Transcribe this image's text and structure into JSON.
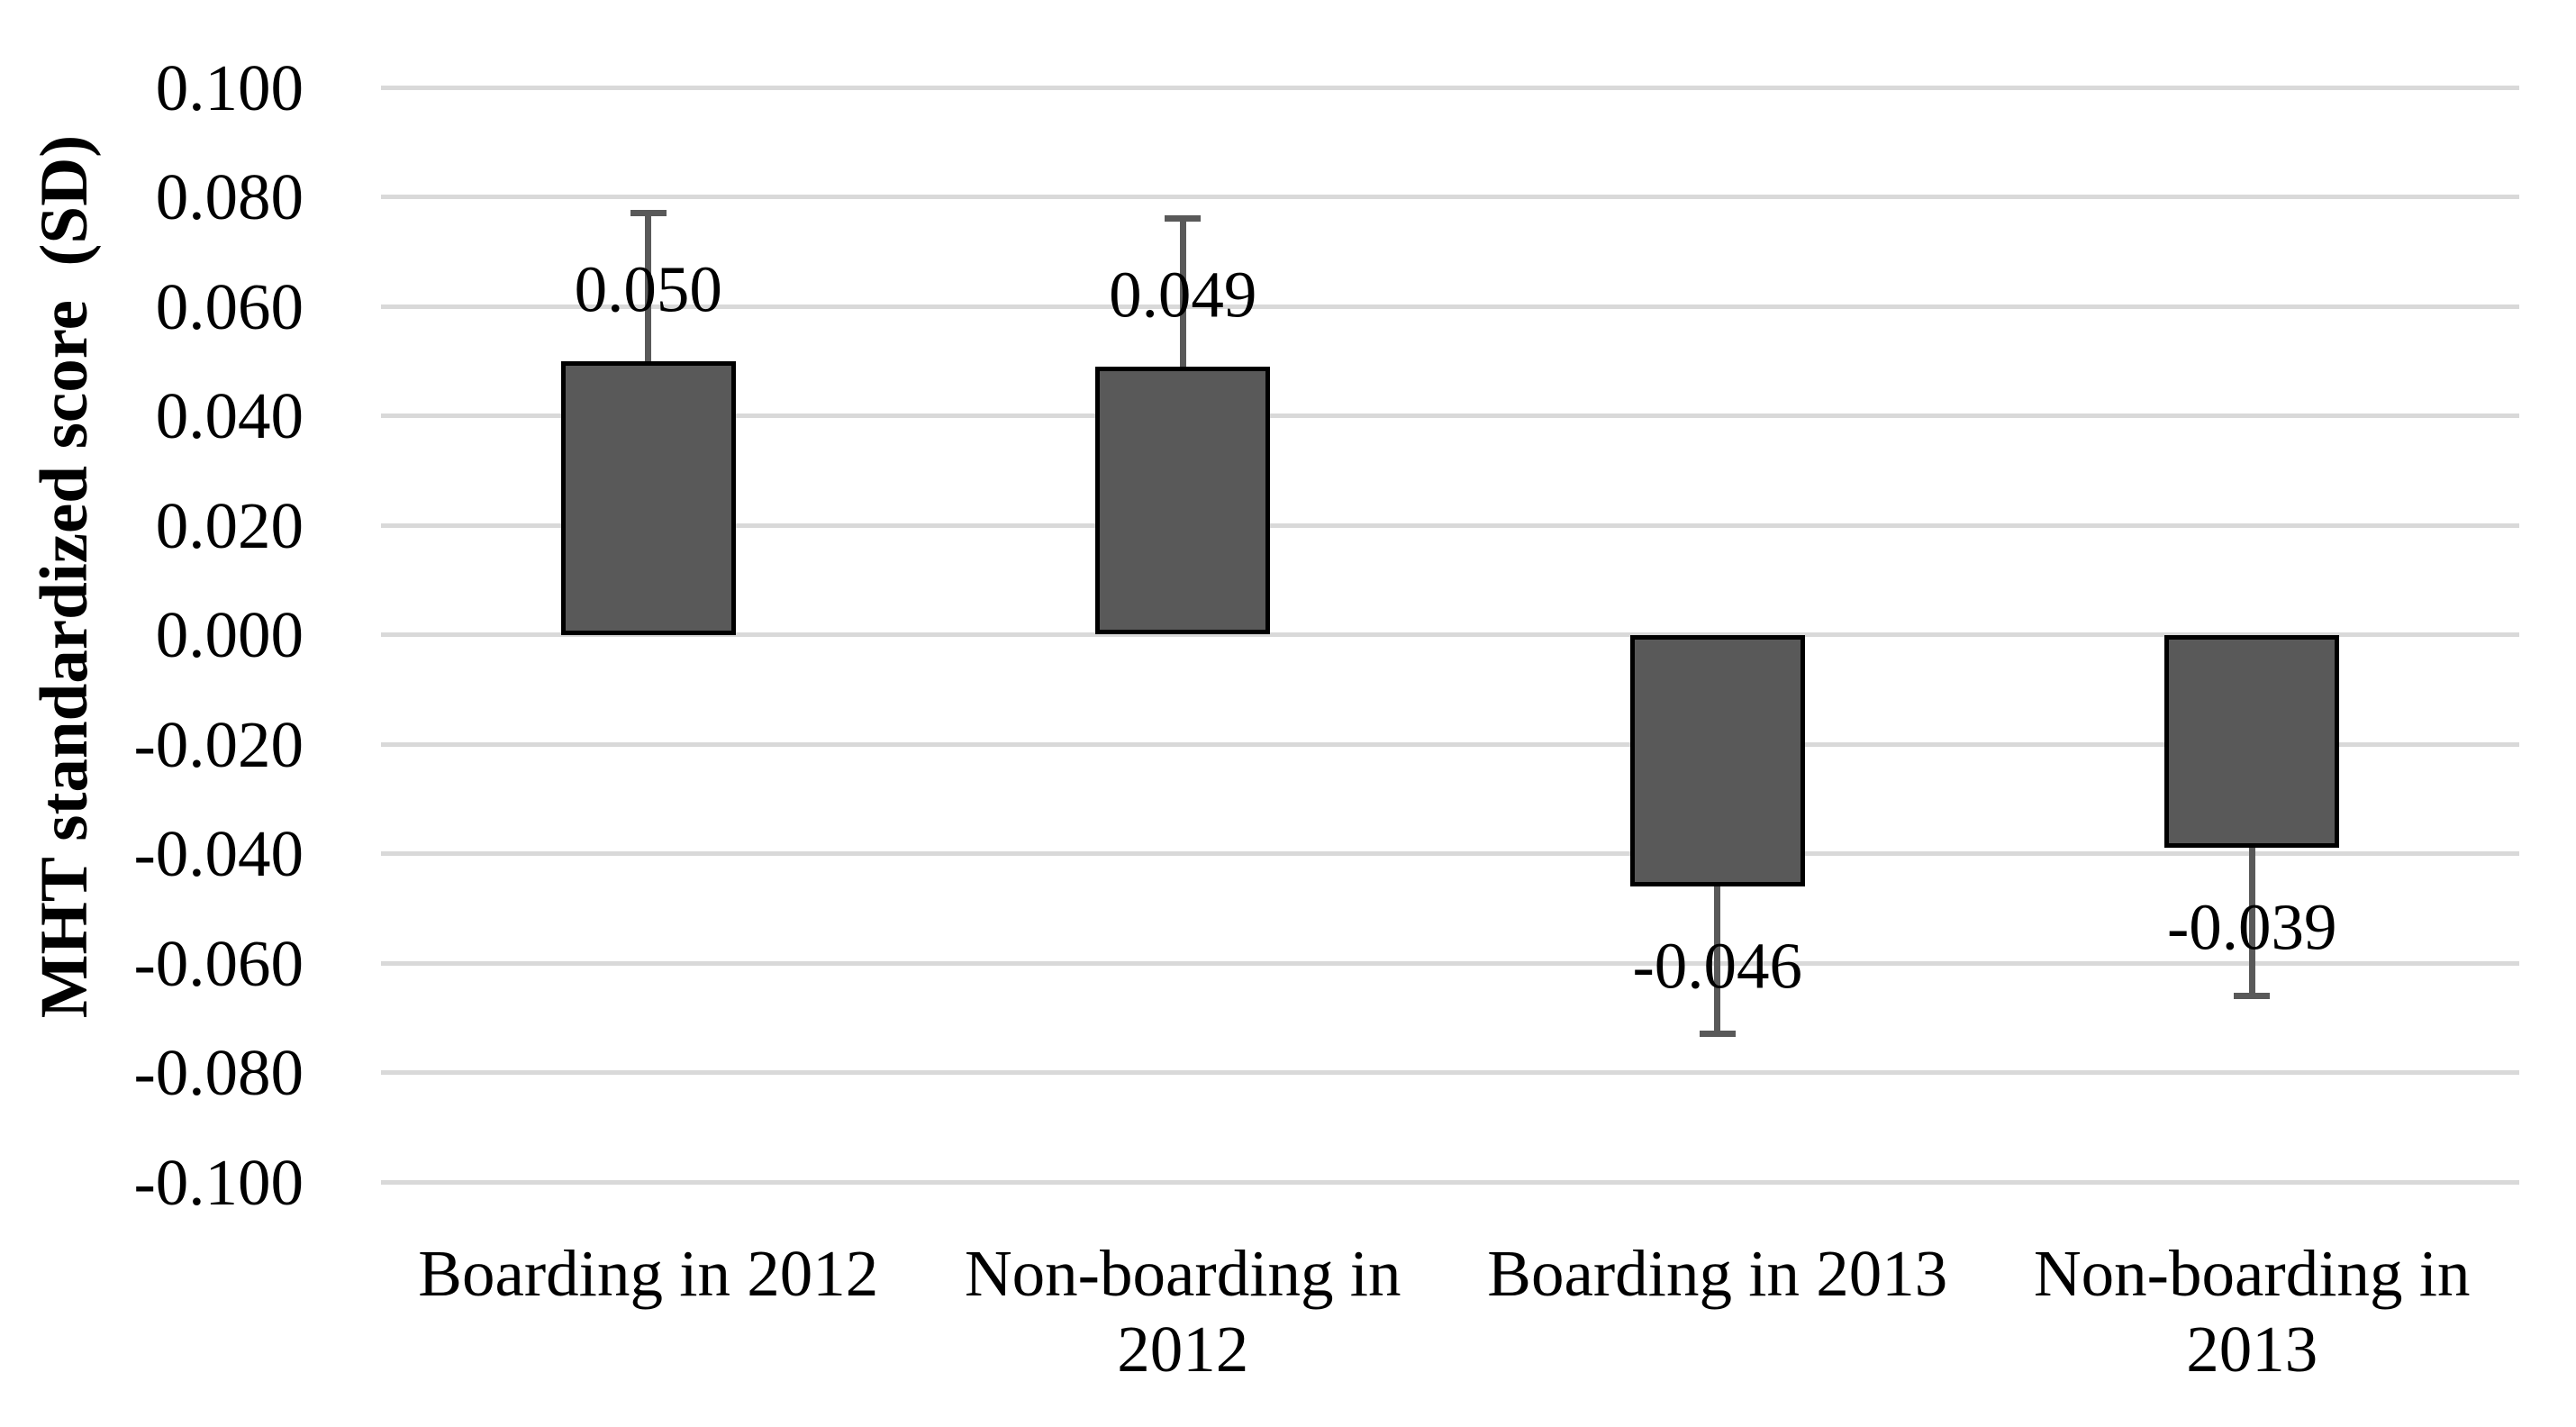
{
  "chart_data": {
    "type": "bar",
    "title": "",
    "xlabel": "",
    "ylabel": "MHT standardized score  (SD)",
    "categories": [
      "Boarding in 2012",
      "Non-boarding in 2012",
      "Boarding in 2013",
      "Non-boarding in 2013"
    ],
    "category_lines": [
      [
        "Boarding in 2012"
      ],
      [
        "Non-boarding in",
        "2012"
      ],
      [
        "Boarding in 2013"
      ],
      [
        "Non-boarding in",
        "2013"
      ]
    ],
    "values": [
      0.05,
      0.049,
      -0.046,
      -0.039
    ],
    "value_labels": [
      "0.050",
      "0.049",
      "-0.046",
      "-0.039"
    ],
    "error_bars": [
      0.027,
      0.027,
      0.027,
      0.027
    ],
    "y_ticks": [
      "0.100",
      "0.080",
      "0.060",
      "0.040",
      "0.020",
      "0.000",
      "-0.020",
      "-0.040",
      "-0.060",
      "-0.080",
      "-0.100"
    ],
    "ylim": [
      -0.1,
      0.1
    ],
    "grid": "horizontal-only",
    "legend": "none",
    "colors": {
      "bar_fill": "#595959",
      "bar_border": "#000000",
      "error_bar": "#595959",
      "gridline": "#d9d9d9",
      "text": "#000000",
      "background": "#ffffff"
    }
  }
}
